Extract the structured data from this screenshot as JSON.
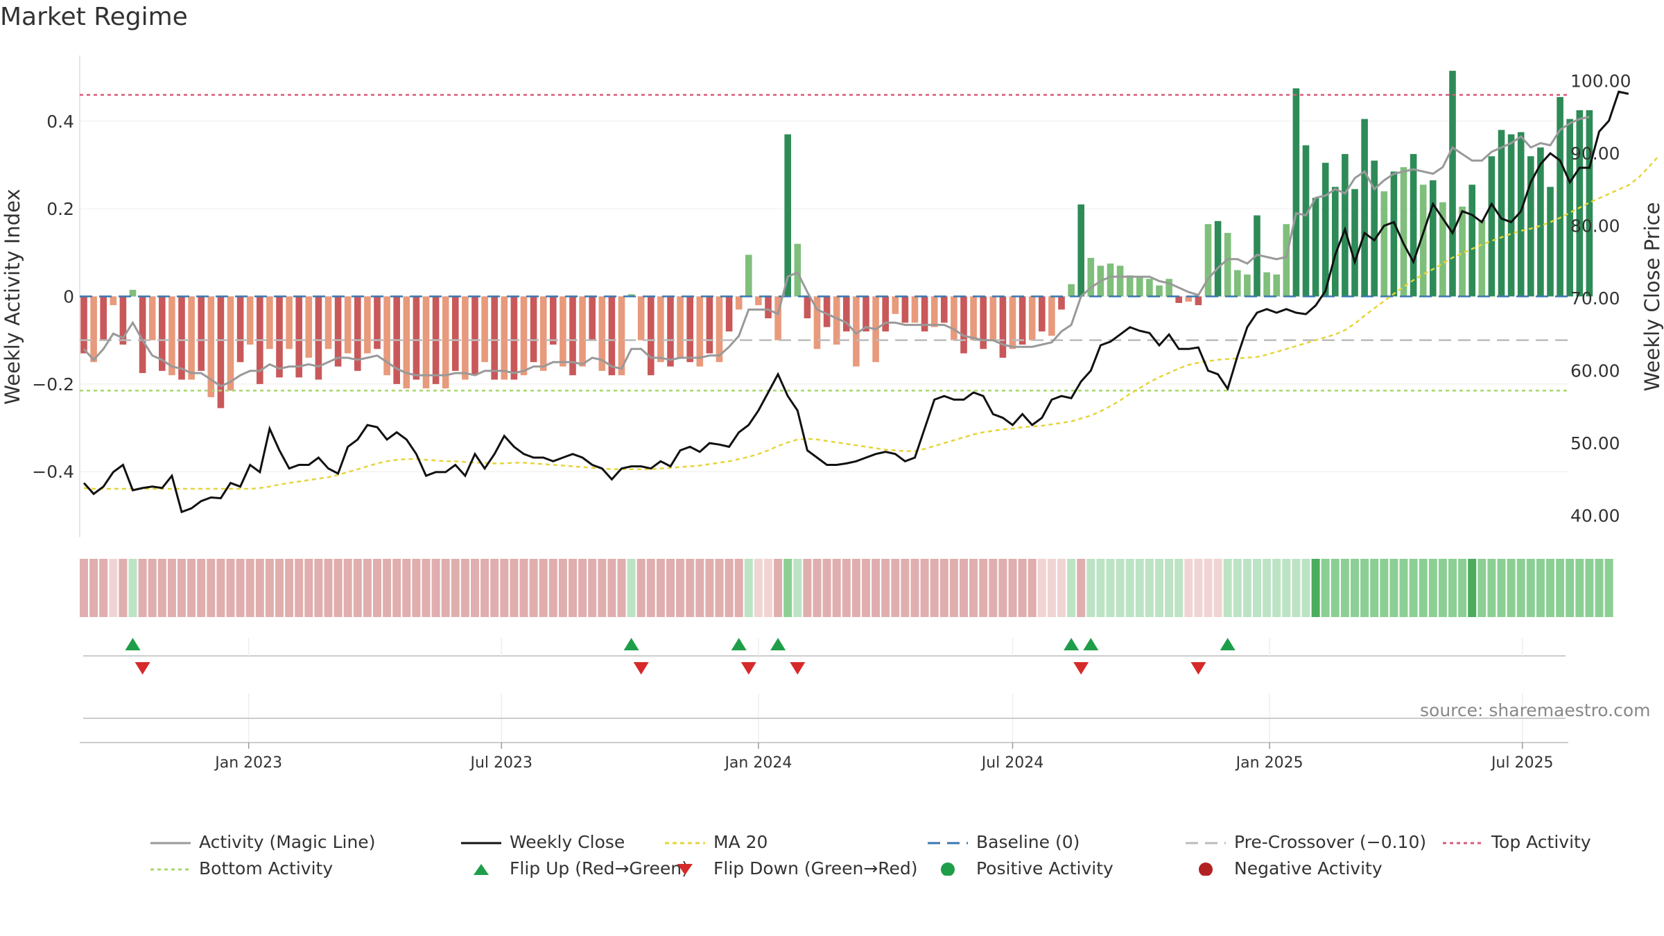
{
  "title": "Market Regime",
  "source_note": "source: sharemaestro.com",
  "colors": {
    "bar_strong_red": "#c9585a",
    "bar_light_red": "#e89a7c",
    "bar_strong_green": "#2e8b57",
    "bar_light_green": "#7fbf7b",
    "magic_line": "#999999",
    "weekly_close": "#111111",
    "ma20": "#e6d43a",
    "baseline": "#3a77b0",
    "pre_crossover": "#bbbbbb",
    "top_activity": "#d95a7a",
    "bottom_activity": "#a8d86b",
    "flip_up": "#1f9e4a",
    "flip_down": "#d62a2a"
  },
  "legend": [
    {
      "label": "Activity (Magic Line)",
      "kind": "line",
      "color": "#999999",
      "dash": ""
    },
    {
      "label": "Weekly Close",
      "kind": "line",
      "color": "#111111",
      "dash": ""
    },
    {
      "label": "MA 20",
      "kind": "line",
      "color": "#e6d43a",
      "dash": "6,5"
    },
    {
      "label": "Baseline (0)",
      "kind": "line",
      "color": "#3a77b0",
      "dash": "18,10"
    },
    {
      "label": "Pre-Crossover (−0.10)",
      "kind": "line",
      "color": "#bbbbbb",
      "dash": "18,10"
    },
    {
      "label": "Top Activity",
      "kind": "line",
      "color": "#d95a7a",
      "dash": "5,5"
    },
    {
      "label": "Bottom Activity",
      "kind": "line",
      "color": "#a8d86b",
      "dash": "5,5"
    },
    {
      "label": "Flip Up (Red→Green)",
      "kind": "tri-up",
      "color": "#1f9e4a",
      "dash": ""
    },
    {
      "label": "Flip Down (Green→Red)",
      "kind": "tri-down",
      "color": "#d62a2a",
      "dash": ""
    },
    {
      "label": "Positive Activity",
      "kind": "dot",
      "color": "#1f9e4a",
      "dash": ""
    },
    {
      "label": "Negative Activity",
      "kind": "dot",
      "color": "#b22222",
      "dash": ""
    }
  ],
  "chart_data": {
    "type": "bar",
    "x_type": "date",
    "x_start": "2022-09-05",
    "x_step_days": 7,
    "x_ticks": [
      "Jan 2023",
      "Jul 2023",
      "Jan 2024",
      "Jul 2024",
      "Jan 2025",
      "Jul 2025"
    ],
    "ylabel": "Weekly Activity Index",
    "y2label": "Weekly Close Price",
    "ylim": [
      -0.55,
      0.55
    ],
    "y2lim": [
      37.0,
      103.5
    ],
    "y_ticks": [
      -0.4,
      -0.2,
      0,
      0.2,
      0.4
    ],
    "y_tick_labels": [
      "−0.4",
      "−0.2",
      "0",
      "0.2",
      "0.4"
    ],
    "y2_ticks": [
      40,
      50,
      60,
      70,
      80,
      90,
      100
    ],
    "y2_tick_labels": [
      "40.00",
      "50.00",
      "60.00",
      "70.00",
      "80.00",
      "90.00",
      "100.00"
    ],
    "reference_lines": {
      "baseline": 0,
      "pre_crossover": -0.1,
      "top_activity": 0.46,
      "bottom_activity": -0.215
    },
    "activity": [
      -0.13,
      -0.15,
      -0.1,
      -0.02,
      -0.11,
      0.015,
      -0.175,
      -0.1,
      -0.17,
      -0.18,
      -0.19,
      -0.19,
      -0.17,
      -0.23,
      -0.255,
      -0.215,
      -0.15,
      -0.11,
      -0.2,
      -0.12,
      -0.185,
      -0.12,
      -0.185,
      -0.14,
      -0.19,
      -0.12,
      -0.16,
      -0.13,
      -0.17,
      -0.13,
      -0.12,
      -0.18,
      -0.2,
      -0.21,
      -0.19,
      -0.21,
      -0.2,
      -0.21,
      -0.17,
      -0.19,
      -0.18,
      -0.15,
      -0.19,
      -0.19,
      -0.19,
      -0.18,
      -0.15,
      -0.17,
      -0.11,
      -0.16,
      -0.18,
      -0.16,
      -0.1,
      -0.17,
      -0.18,
      -0.18,
      0.005,
      -0.1,
      -0.18,
      -0.15,
      -0.16,
      -0.14,
      -0.15,
      -0.16,
      -0.13,
      -0.15,
      -0.08,
      -0.03,
      0.095,
      -0.02,
      -0.05,
      -0.1,
      0.37,
      0.12,
      -0.05,
      -0.12,
      -0.07,
      -0.11,
      -0.08,
      -0.16,
      -0.08,
      -0.15,
      -0.08,
      -0.04,
      -0.06,
      -0.06,
      -0.08,
      -0.07,
      -0.06,
      -0.1,
      -0.13,
      -0.1,
      -0.12,
      -0.1,
      -0.14,
      -0.12,
      -0.11,
      -0.1,
      -0.08,
      -0.09,
      -0.03,
      0.028,
      0.21,
      0.088,
      0.07,
      0.075,
      0.07,
      0.048,
      0.045,
      0.04,
      0.025,
      0.04,
      -0.015,
      -0.012,
      -0.02,
      0.165,
      0.172,
      0.145,
      0.06,
      0.05,
      0.185,
      0.055,
      0.05,
      0.165,
      0.475,
      0.345,
      0.225,
      0.305,
      0.25,
      0.325,
      0.245,
      0.405,
      0.31,
      0.24,
      0.285,
      0.295,
      0.325,
      0.255,
      0.265,
      0.215,
      0.515,
      0.205,
      0.255,
      0.175,
      0.32,
      0.38,
      0.37,
      0.375,
      0.32,
      0.34,
      0.25,
      0.455,
      0.405,
      0.425,
      0.425
    ],
    "magic_line": [
      -0.12,
      -0.145,
      -0.12,
      -0.085,
      -0.095,
      -0.06,
      -0.1,
      -0.135,
      -0.145,
      -0.16,
      -0.165,
      -0.175,
      -0.175,
      -0.19,
      -0.205,
      -0.195,
      -0.18,
      -0.17,
      -0.17,
      -0.155,
      -0.165,
      -0.16,
      -0.16,
      -0.155,
      -0.16,
      -0.15,
      -0.14,
      -0.14,
      -0.145,
      -0.14,
      -0.135,
      -0.15,
      -0.165,
      -0.175,
      -0.18,
      -0.18,
      -0.18,
      -0.18,
      -0.175,
      -0.175,
      -0.18,
      -0.17,
      -0.17,
      -0.17,
      -0.175,
      -0.17,
      -0.16,
      -0.16,
      -0.15,
      -0.15,
      -0.15,
      -0.155,
      -0.14,
      -0.145,
      -0.16,
      -0.165,
      -0.12,
      -0.12,
      -0.14,
      -0.14,
      -0.145,
      -0.14,
      -0.14,
      -0.14,
      -0.135,
      -0.135,
      -0.115,
      -0.09,
      -0.03,
      -0.03,
      -0.03,
      -0.04,
      0.045,
      0.055,
      0.01,
      -0.03,
      -0.04,
      -0.05,
      -0.06,
      -0.085,
      -0.07,
      -0.075,
      -0.06,
      -0.06,
      -0.065,
      -0.065,
      -0.065,
      -0.065,
      -0.065,
      -0.075,
      -0.09,
      -0.095,
      -0.1,
      -0.1,
      -0.11,
      -0.115,
      -0.115,
      -0.115,
      -0.11,
      -0.105,
      -0.08,
      -0.065,
      0.0,
      0.02,
      0.035,
      0.045,
      0.045,
      0.045,
      0.045,
      0.045,
      0.035,
      0.03,
      0.02,
      0.01,
      0.003,
      0.04,
      0.065,
      0.085,
      0.085,
      0.075,
      0.095,
      0.09,
      0.085,
      0.09,
      0.19,
      0.185,
      0.225,
      0.23,
      0.245,
      0.235,
      0.27,
      0.285,
      0.245,
      0.265,
      0.28,
      0.285,
      0.29,
      0.285,
      0.28,
      0.295,
      0.34,
      0.325,
      0.31,
      0.31,
      0.33,
      0.34,
      0.35,
      0.365,
      0.34,
      0.35,
      0.345,
      0.38,
      0.395,
      0.405,
      0.41
    ],
    "weekly_close": [
      44.5,
      43.0,
      44.0,
      46.0,
      47.0,
      43.5,
      43.8,
      44.0,
      43.8,
      45.5,
      40.5,
      41.0,
      42.0,
      42.5,
      42.4,
      44.5,
      44.0,
      47.0,
      46.0,
      52.0,
      49.0,
      46.5,
      47.0,
      47.0,
      48.0,
      46.5,
      45.8,
      49.5,
      50.5,
      52.5,
      52.2,
      50.5,
      51.5,
      50.5,
      48.5,
      45.5,
      46.0,
      46.0,
      47.0,
      45.5,
      48.5,
      46.5,
      48.5,
      51.0,
      49.5,
      48.5,
      48.0,
      48.0,
      47.5,
      48.0,
      48.5,
      48.0,
      47.0,
      46.5,
      45.0,
      46.5,
      46.8,
      46.8,
      46.5,
      47.5,
      46.8,
      49.0,
      49.5,
      48.8,
      50.0,
      49.8,
      49.5,
      51.5,
      52.5,
      54.5,
      57.0,
      59.5,
      56.5,
      54.5,
      49.0,
      48.0,
      47.0,
      47.0,
      47.2,
      47.5,
      48.0,
      48.5,
      48.8,
      48.5,
      47.5,
      48.0,
      52.0,
      56.0,
      56.5,
      56.0,
      56.0,
      57.0,
      56.5,
      54.0,
      53.5,
      52.5,
      54.0,
      52.5,
      53.5,
      56.0,
      56.5,
      56.2,
      58.5,
      60.0,
      63.5,
      64.0,
      65.0,
      66.0,
      65.5,
      65.2,
      63.5,
      65.0,
      63.0,
      63.0,
      63.2,
      60.0,
      59.5,
      57.5,
      62.0,
      66.0,
      68.0,
      68.5,
      68.0,
      68.5,
      68.0,
      67.8,
      69.0,
      71.0,
      76.0,
      79.5,
      75.0,
      79.0,
      78.0,
      80.0,
      80.5,
      77.5,
      75.0,
      79.0,
      83.0,
      81.0,
      79.0,
      82.0,
      81.5,
      80.5,
      83.0,
      81.0,
      80.5,
      82.0,
      86.0,
      88.5,
      90.0,
      89.0,
      86.0,
      88.0,
      88.0,
      93.0,
      94.5,
      98.5,
      98.2
    ],
    "ma20": [
      43.8,
      43.7,
      43.7,
      43.7,
      43.7,
      43.7,
      43.7,
      43.7,
      43.7,
      43.7,
      43.7,
      43.7,
      43.7,
      43.7,
      43.7,
      43.7,
      43.7,
      43.7,
      43.8,
      44.0,
      44.3,
      44.5,
      44.7,
      44.9,
      45.1,
      45.3,
      45.6,
      46.0,
      46.4,
      46.8,
      47.2,
      47.5,
      47.7,
      47.8,
      47.8,
      47.7,
      47.6,
      47.5,
      47.5,
      47.4,
      47.3,
      47.3,
      47.2,
      47.2,
      47.3,
      47.3,
      47.2,
      47.1,
      47.0,
      46.9,
      46.8,
      46.7,
      46.6,
      46.5,
      46.4,
      46.4,
      46.4,
      46.4,
      46.4,
      46.5,
      46.6,
      46.7,
      46.8,
      46.9,
      47.1,
      47.3,
      47.5,
      47.8,
      48.1,
      48.5,
      49.0,
      49.6,
      50.1,
      50.5,
      50.6,
      50.5,
      50.3,
      50.1,
      49.9,
      49.7,
      49.5,
      49.3,
      49.1,
      49.0,
      48.9,
      48.9,
      49.2,
      49.6,
      50.0,
      50.4,
      50.8,
      51.2,
      51.5,
      51.7,
      51.9,
      52.0,
      52.2,
      52.3,
      52.4,
      52.6,
      52.8,
      53.0,
      53.4,
      53.8,
      54.4,
      55.1,
      55.9,
      56.8,
      57.6,
      58.4,
      59.1,
      59.7,
      60.3,
      60.8,
      61.1,
      61.3,
      61.5,
      61.6,
      61.7,
      61.8,
      61.9,
      62.2,
      62.6,
      63.0,
      63.4,
      63.8,
      64.2,
      64.6,
      65.0,
      65.6,
      66.5,
      67.6,
      68.6,
      69.6,
      70.6,
      71.6,
      72.5,
      73.3,
      74.0,
      74.8,
      75.6,
      76.2,
      76.8,
      77.4,
      77.9,
      78.4,
      78.9,
      79.3,
      79.6,
      80.0,
      80.5,
      81.1,
      81.8,
      82.5,
      83.2,
      83.8,
      84.4,
      85.0,
      85.6,
      86.6,
      88.0,
      89.5
    ],
    "regime_strip": [
      1,
      1,
      1,
      0,
      1,
      2,
      1,
      1,
      1,
      1,
      1,
      1,
      1,
      1,
      1,
      1,
      1,
      1,
      1,
      1,
      1,
      1,
      1,
      1,
      1,
      1,
      1,
      1,
      1,
      1,
      1,
      1,
      1,
      1,
      1,
      1,
      1,
      1,
      1,
      1,
      1,
      1,
      1,
      1,
      1,
      1,
      1,
      1,
      1,
      1,
      1,
      1,
      1,
      1,
      1,
      1,
      2,
      1,
      1,
      1,
      1,
      1,
      1,
      1,
      1,
      1,
      1,
      1,
      2,
      0,
      0,
      1,
      3,
      2,
      1,
      1,
      1,
      1,
      1,
      1,
      1,
      1,
      1,
      1,
      1,
      1,
      1,
      1,
      1,
      1,
      1,
      1,
      1,
      1,
      1,
      1,
      1,
      1,
      0,
      0,
      0,
      2,
      1,
      2,
      2,
      2,
      2,
      2,
      2,
      2,
      2,
      2,
      2,
      0,
      0,
      0,
      0,
      2,
      2,
      2,
      2,
      2,
      2,
      2,
      2,
      2,
      4,
      3,
      3,
      3,
      3,
      3,
      3,
      3,
      3,
      3,
      3,
      3,
      3,
      3,
      3,
      3,
      4,
      3,
      3,
      3,
      3,
      3,
      3,
      3,
      3,
      3,
      3,
      3,
      3,
      3,
      3
    ],
    "flip_up_weeks": [
      5,
      56,
      67,
      71,
      101,
      103,
      117
    ],
    "flip_down_weeks": [
      6,
      57,
      68,
      73,
      102,
      114
    ]
  }
}
